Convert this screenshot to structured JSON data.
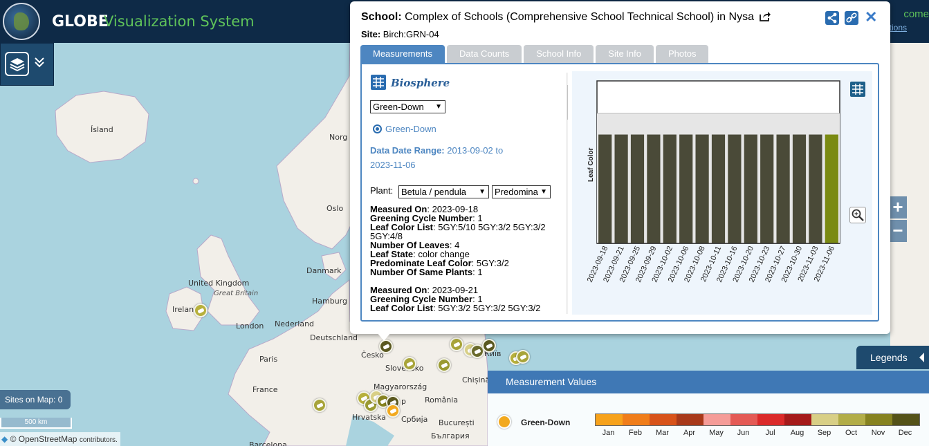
{
  "header": {
    "title": "GLOBE",
    "subtitle": "Visualization System",
    "welcome": "come",
    "welcome_sub": "tions"
  },
  "map": {
    "labels": {
      "island": "Ísland",
      "norge": "Norg",
      "oslo": "Oslo",
      "danmark": "Danmark",
      "united_kingdom": "United Kingdom",
      "great_britain": "Great Britain",
      "ireland": "Irelan",
      "london": "London",
      "hamburg": "Hamburg",
      "nederland": "Nederland",
      "deutschland": "Deutschland",
      "paris": "Paris",
      "france": "France",
      "cesko": "Česko",
      "slovensko": "Slovensko",
      "kyiv": "Київ",
      "chisinau": "Chișinău",
      "magyarorszag": "Magyarország",
      "romania": "România",
      "hrvatska": "Hrvatska",
      "srbija": "Србија",
      "bucuresti": "București",
      "balgariya": "България",
      "barcelona": "Barcelona",
      "pest": "p"
    },
    "sites_on_map": "Sites on Map: 0",
    "scale": "500 km",
    "attribution": "© OpenStreetMap",
    "attribution_suffix": "contributors.",
    "zoom_in": "+",
    "zoom_out": "−"
  },
  "popup": {
    "school_label": "School:",
    "school_name": "Complex of Schools (Comprehensive School Technical School) in Nysa",
    "site_label": "Site:",
    "site_name": "Birch:GRN-04",
    "tabs": [
      "Measurements",
      "Data Counts",
      "School Info",
      "Site Info",
      "Photos"
    ],
    "panel": {
      "section_title": "Biosphere",
      "protocol_select": "Green-Down",
      "radio_label": "Green-Down",
      "date_range_label": "Data Date Range:",
      "date_range_value": "2013-09-02 to",
      "date_range_end": "2023-11-06",
      "plant_label": "Plant:",
      "plant_select": "Betula / pendula",
      "predominate_select": "Predomina",
      "records": [
        {
          "measured_on": "2023-09-18",
          "greening_cycle": "1",
          "leaf_color_list": "5GY:5/10 5GY:3/2 5GY:3/2 5GY:4/8",
          "number_of_leaves": "4",
          "leaf_state": "color change",
          "predominate_leaf_color": "5GY:3/2",
          "number_of_same_plants": "1"
        },
        {
          "measured_on": "2023-09-21",
          "greening_cycle": "1",
          "leaf_color_list": "5GY:3/2 5GY:3/2 5GY:3/2"
        }
      ],
      "field_labels": {
        "measured_on": "Measured On",
        "greening_cycle": "Greening Cycle Number",
        "leaf_color_list": "Leaf Color List",
        "number_of_leaves": "Number Of Leaves",
        "leaf_state": "Leaf State",
        "predominate_leaf_color": "Predominate Leaf Color",
        "number_of_same_plants": "Number Of Same Plants"
      }
    }
  },
  "chart_data": {
    "type": "bar",
    "ylabel": "Leaf Color",
    "categories": [
      "2023-09-18",
      "2023-09-21",
      "2023-09-25",
      "2023-09-29",
      "2023-10-02",
      "2023-10-06",
      "2023-10-08",
      "2023-10-11",
      "2023-10-16",
      "2023-10-20",
      "2023-10-23",
      "2023-10-27",
      "2023-10-30",
      "2023-11-03",
      "2023-11-06"
    ],
    "values": [
      0.67,
      0.67,
      0.67,
      0.67,
      0.67,
      0.67,
      0.67,
      0.67,
      0.67,
      0.67,
      0.67,
      0.67,
      0.67,
      0.67,
      0.67
    ],
    "bar_colors": [
      "#4a4a38",
      "#4a4a38",
      "#4a4a38",
      "#4a4a38",
      "#4a4a38",
      "#4a4a38",
      "#4a4a38",
      "#4a4a38",
      "#4a4a38",
      "#4a4a38",
      "#4a4a38",
      "#4a4a38",
      "#4a4a38",
      "#4a4a38",
      "#7a8a12"
    ],
    "ylim": [
      0,
      1
    ],
    "grid": true
  },
  "legend": {
    "tab_label": "Legends",
    "header": "Measurement Values",
    "item_label": "Green-Down",
    "months": [
      "Jan",
      "Feb",
      "Mar",
      "Apr",
      "May",
      "Jun",
      "Jul",
      "Aug",
      "Sep",
      "Oct",
      "Nov",
      "Dec"
    ],
    "colors": [
      "#f7a21b",
      "#f07d1a",
      "#d8531a",
      "#a8391a",
      "#f59c98",
      "#e45a55",
      "#db2a2a",
      "#a51a1a",
      "#d8cf86",
      "#b2ad48",
      "#868220",
      "#545218"
    ]
  },
  "icons": {
    "share": "share-icon",
    "link": "link-icon",
    "close": "close-icon",
    "external": "external-link-icon",
    "layers": "layers-icon",
    "table": "table-icon",
    "zoom": "magnifier-icon"
  },
  "colors": {
    "header_bg": "#0e2a47",
    "accent_green": "#5fc35a",
    "accent_blue": "#4d86c1"
  }
}
